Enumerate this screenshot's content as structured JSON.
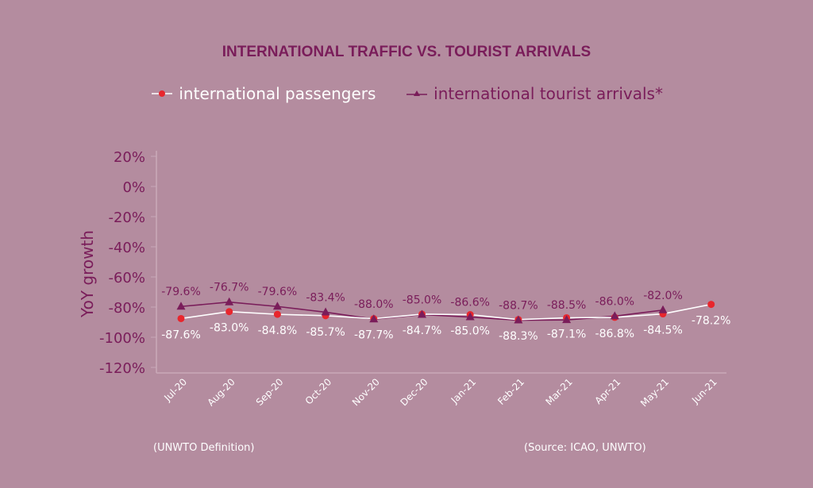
{
  "chart_data": {
    "type": "line",
    "title": "INTERNATIONAL TRAFFIC VS. TOURIST ARRIVALS",
    "ylabel": "YoY growth",
    "xlabel": "",
    "ylim": [
      -120,
      20
    ],
    "yticks": [
      "20%",
      "0%",
      "-20%",
      "-40%",
      "-60%",
      "-80%",
      "-100%",
      "-120%"
    ],
    "ytick_values": [
      20,
      0,
      -20,
      -40,
      -60,
      -80,
      -100,
      -120
    ],
    "categories": [
      "Jul-20",
      "Aug-20",
      "Sep-20",
      "Oct-20",
      "Nov-20",
      "Dec-20",
      "Jan-21",
      "Feb-21",
      "Mar-21",
      "Apr-21",
      "May-21",
      "Jun-21"
    ],
    "series": [
      {
        "name": "international passengers",
        "color": "#e8262d",
        "line_color": "#ffffff",
        "values": [
          -87.6,
          -83.0,
          -84.8,
          -85.7,
          -87.7,
          -84.7,
          -85.0,
          -88.3,
          -87.1,
          -86.8,
          -84.5,
          -78.2
        ]
      },
      {
        "name": "international tourist arrivals*",
        "color": "#7a1d5a",
        "line_color": "#7a1d5a",
        "values": [
          -79.6,
          -76.7,
          -79.6,
          -83.4,
          -88.0,
          -85.0,
          -86.6,
          -88.7,
          -88.5,
          -86.0,
          -82.0,
          null
        ]
      }
    ],
    "legend_position": "top-center",
    "grid": false
  },
  "footnote": "(UNWTO Definition)",
  "source": "(Source: ICAO, UNWTO)"
}
